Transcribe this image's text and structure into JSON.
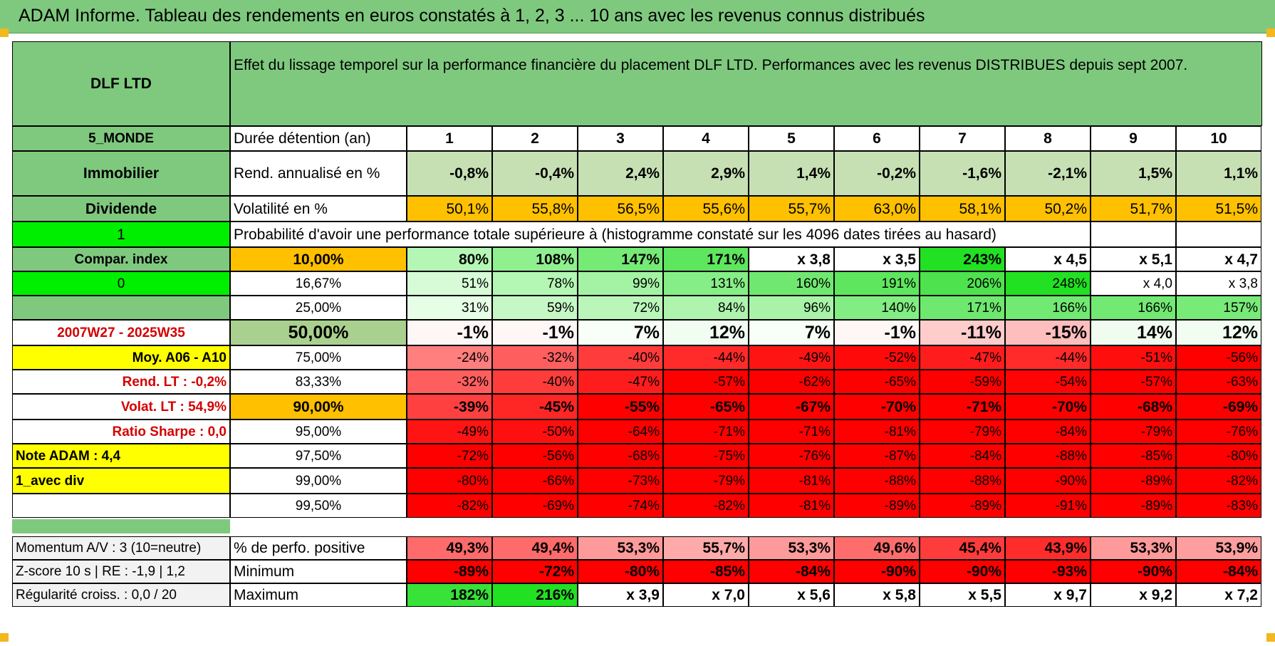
{
  "title": "ADAM Informe. Tableau des rendements en euros constatés à 1, 2, 3 ... 10 ans avec les revenus connus distribués",
  "fund_name": "DLF LTD",
  "description": "Effet du lissage temporel sur la performance financière du placement DLF LTD. Performances avec les revenus DISTRIBUES depuis sept 2007.",
  "side": {
    "category": "5_MONDE",
    "type": "Immobilier",
    "income": "Dividende",
    "flag1": "1",
    "compar_index": "Compar. index",
    "flag2": "0",
    "period": "2007W27 - 2025W35",
    "avg_label": "Moy. A06 - A10",
    "rend_lt": "Rend. LT :    -0,2%",
    "volat_lt": "Volat. LT :    54,9%",
    "sharpe": "Ratio Sharpe :    0,0",
    "note": "Note ADAM : 4,4",
    "mode": "1_avec div"
  },
  "headers": {
    "duration": "Durée détention (an)",
    "years": [
      "1",
      "2",
      "3",
      "4",
      "5",
      "6",
      "7",
      "8",
      "9",
      "10"
    ],
    "rend": "Rend. annualisé en %",
    "vol": "Volatilité en %",
    "prob": "Probabilité d'avoir une performance totale supérieure à (histogramme constaté sur les 4096 dates tirées au hasard)"
  },
  "rend_values": [
    "-0,8%",
    "-0,4%",
    "2,4%",
    "2,9%",
    "1,4%",
    "-0,2%",
    "-1,6%",
    "-2,1%",
    "1,5%",
    "1,1%"
  ],
  "vol_values": [
    "50,1%",
    "55,8%",
    "56,5%",
    "55,6%",
    "55,7%",
    "63,0%",
    "58,1%",
    "50,2%",
    "51,7%",
    "51,5%"
  ],
  "percentile_rows": [
    {
      "label": "10,00%",
      "values": [
        "80%",
        "108%",
        "147%",
        "171%",
        "x 3,8",
        "x 3,5",
        "243%",
        "x 4,5",
        "x 5,1",
        "x 4,7"
      ],
      "colors": [
        "#b4f7b4",
        "#90f090",
        "#75ea75",
        "#5ee65e",
        "#ffffff",
        "#ffffff",
        "#22e022",
        "#ffffff",
        "#ffffff",
        "#ffffff"
      ]
    },
    {
      "label": "16,67%",
      "values": [
        "51%",
        "78%",
        "99%",
        "131%",
        "160%",
        "191%",
        "206%",
        "248%",
        "x 4,0",
        "x 3,8"
      ],
      "colors": [
        "#d6fbd6",
        "#b4f7b4",
        "#a4f3a4",
        "#86ee86",
        "#70e870",
        "#5ee65e",
        "#4ee24e",
        "#22e022",
        "#ffffff",
        "#ffffff"
      ]
    },
    {
      "label": "25,00%",
      "values": [
        "31%",
        "59%",
        "72%",
        "84%",
        "96%",
        "140%",
        "171%",
        "166%",
        "166%",
        "157%"
      ],
      "colors": [
        "#e6fde6",
        "#c6f8c6",
        "#baf6ba",
        "#aef4ae",
        "#a8f3a8",
        "#82ed82",
        "#6ee86e",
        "#72e972",
        "#72e972",
        "#78ea78"
      ]
    },
    {
      "label": "50,00%",
      "values": [
        "-1%",
        "-1%",
        "7%",
        "12%",
        "7%",
        "-1%",
        "-11%",
        "-15%",
        "14%",
        "12%"
      ],
      "colors": [
        "#fff6f6",
        "#fff6f6",
        "#f8fef8",
        "#f2fdf2",
        "#f8fef8",
        "#fff6f6",
        "#ffcccc",
        "#ffbebe",
        "#f0fcf0",
        "#f2fdf2"
      ]
    },
    {
      "label": "75,00%",
      "values": [
        "-24%",
        "-32%",
        "-40%",
        "-44%",
        "-49%",
        "-52%",
        "-47%",
        "-44%",
        "-51%",
        "-56%"
      ],
      "colors": [
        "#ff7e7e",
        "#ff5e5e",
        "#ff3c3c",
        "#ff2a2a",
        "#ff1414",
        "#ff0a0a",
        "#ff1c1c",
        "#ff2a2a",
        "#ff0e0e",
        "#ff0000"
      ]
    },
    {
      "label": "83,33%",
      "values": [
        "-32%",
        "-40%",
        "-47%",
        "-57%",
        "-62%",
        "-65%",
        "-59%",
        "-54%",
        "-57%",
        "-63%"
      ],
      "colors": [
        "#ff5e5e",
        "#ff3c3c",
        "#ff1c1c",
        "#ff0000",
        "#ff0000",
        "#ff0000",
        "#ff0000",
        "#ff0404",
        "#ff0000",
        "#ff0000"
      ]
    },
    {
      "label": "90,00%",
      "values": [
        "-39%",
        "-45%",
        "-55%",
        "-65%",
        "-67%",
        "-70%",
        "-71%",
        "-70%",
        "-68%",
        "-69%"
      ],
      "colors": [
        "#ff4040",
        "#ff2626",
        "#ff0000",
        "#ff0000",
        "#ff0000",
        "#ff0000",
        "#ff0000",
        "#ff0000",
        "#ff0000",
        "#ff0000"
      ]
    },
    {
      "label": "95,00%",
      "values": [
        "-49%",
        "-50%",
        "-64%",
        "-71%",
        "-71%",
        "-81%",
        "-79%",
        "-84%",
        "-79%",
        "-76%"
      ],
      "colors": [
        "#ff1414",
        "#ff1010",
        "#ff0000",
        "#ff0000",
        "#ff0000",
        "#ff0000",
        "#ff0000",
        "#ff0000",
        "#ff0000",
        "#ff0000"
      ]
    },
    {
      "label": "97,50%",
      "values": [
        "-72%",
        "-56%",
        "-68%",
        "-75%",
        "-76%",
        "-87%",
        "-84%",
        "-88%",
        "-85%",
        "-80%"
      ],
      "colors": [
        "#ff0000",
        "#ff0000",
        "#ff0000",
        "#ff0000",
        "#ff0000",
        "#ff0000",
        "#ff0000",
        "#ff0000",
        "#ff0000",
        "#ff0000"
      ]
    },
    {
      "label": "99,00%",
      "values": [
        "-80%",
        "-66%",
        "-73%",
        "-79%",
        "-81%",
        "-88%",
        "-88%",
        "-90%",
        "-89%",
        "-82%"
      ],
      "colors": [
        "#ff0000",
        "#ff0000",
        "#ff0000",
        "#ff0000",
        "#ff0000",
        "#ff0000",
        "#ff0000",
        "#ff0000",
        "#ff0000",
        "#ff0000"
      ]
    },
    {
      "label": "99,50%",
      "values": [
        "-82%",
        "-69%",
        "-74%",
        "-82%",
        "-81%",
        "-89%",
        "-89%",
        "-91%",
        "-89%",
        "-83%"
      ],
      "colors": [
        "#ff0000",
        "#ff0000",
        "#ff0000",
        "#ff0000",
        "#ff0000",
        "#ff0000",
        "#ff0000",
        "#ff0000",
        "#ff0000",
        "#ff0000"
      ]
    }
  ],
  "bottom": {
    "momentum": "Momentum A/V : 3 (10=neutre)",
    "zscore": "Z-score 10 s | RE : -1,9 | 1,2",
    "regularite": "Régularité croiss. : 0,0 / 20",
    "pos_label": "% de perfo. positive",
    "min_label": "Minimum",
    "max_label": "Maximum",
    "pos_values": [
      "49,3%",
      "49,4%",
      "53,3%",
      "55,7%",
      "53,3%",
      "49,6%",
      "45,4%",
      "43,9%",
      "53,3%",
      "53,9%"
    ],
    "pos_colors": [
      "#ff6a6a",
      "#ff6a6a",
      "#ff9a9a",
      "#ffaaaa",
      "#ff9a9a",
      "#ff6c6c",
      "#ff3c3c",
      "#ff2c2c",
      "#ff9a9a",
      "#ff9e9e"
    ],
    "min_values": [
      "-89%",
      "-72%",
      "-80%",
      "-85%",
      "-84%",
      "-90%",
      "-90%",
      "-93%",
      "-90%",
      "-84%"
    ],
    "max_values": [
      "182%",
      "216%",
      "x 3,9",
      "x 7,0",
      "x 5,6",
      "x 5,8",
      "x 5,5",
      "x 9,7",
      "x 9,2",
      "x 7,2"
    ],
    "max_colors": [
      "#38e238",
      "#22e022",
      "#ffffff",
      "#ffffff",
      "#ffffff",
      "#ffffff",
      "#ffffff",
      "#ffffff",
      "#ffffff",
      "#ffffff"
    ]
  },
  "colors": {
    "green_header": "#7fc97f",
    "light_green": "#c6e0b4",
    "orange": "#ffc000",
    "yellow": "#ffff00",
    "bright_green": "#00ee00",
    "red": "#ff0000"
  }
}
